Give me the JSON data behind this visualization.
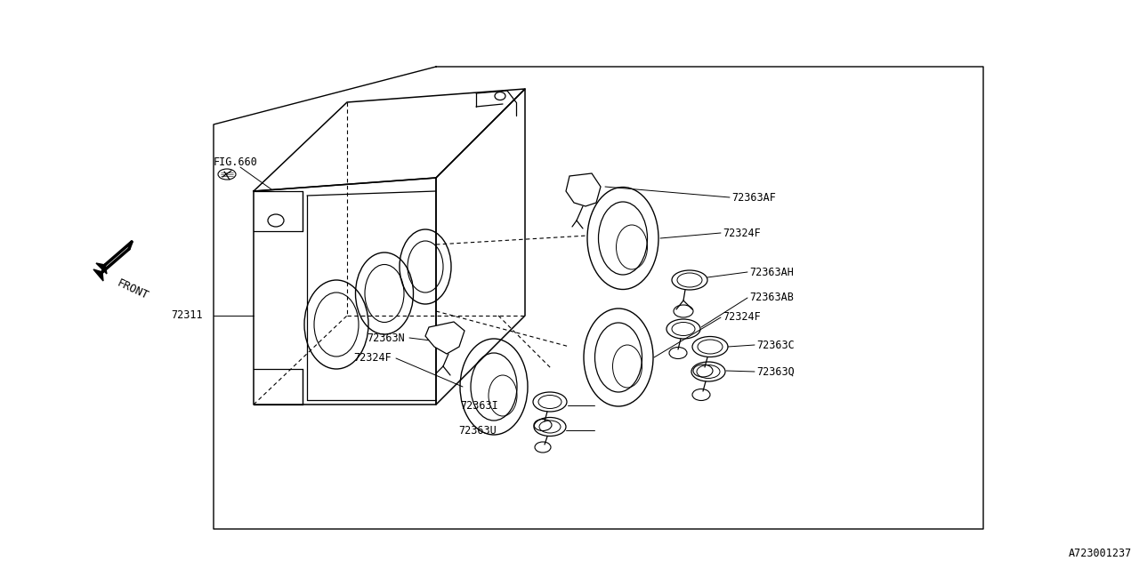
{
  "bg_color": "#ffffff",
  "line_color": "#000000",
  "text_color": "#000000",
  "fig_width": 12.8,
  "fig_height": 6.4,
  "catalog_num": "A723001237",
  "labels": {
    "fig660": "FIG.660",
    "front": "FRONT",
    "p72311": "72311",
    "p72363af": "72363AF",
    "p72324f_1": "72324F",
    "p72363ah": "72363AH",
    "p72363ab": "72363AB",
    "p72324f_2": "72324F",
    "p72363c": "72363C",
    "p72363q": "72363Q",
    "p72324f_3": "72324F",
    "p72363n": "72363N",
    "p72363i": "72363I",
    "p72363u": "72363U"
  },
  "font_size": 8.5,
  "font_size_catalog": 8.5
}
